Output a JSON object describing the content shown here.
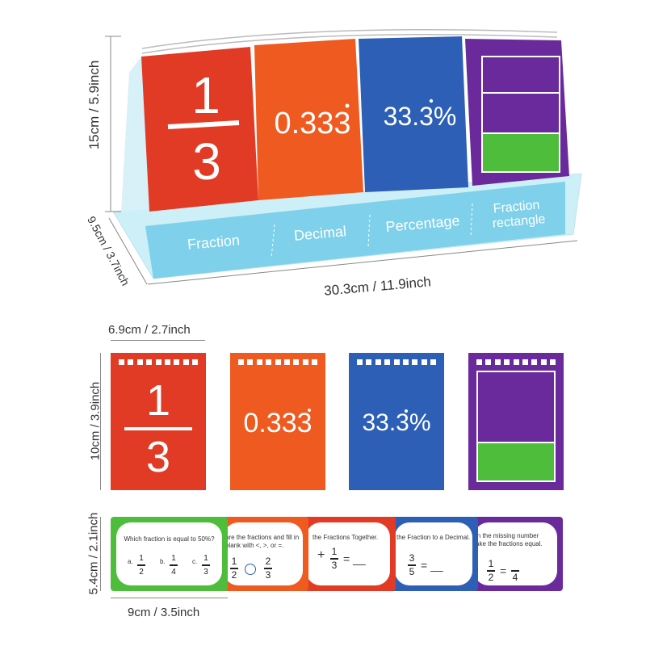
{
  "stand": {
    "cards": {
      "fraction_numerator": "1",
      "fraction_denominator": "3",
      "decimal": "0.333",
      "decimal_dot": "̇",
      "percentage": "33.3%"
    },
    "labels": {
      "fraction": "Fraction",
      "decimal": "Decimal",
      "percentage": "Percentage",
      "fraction_rectangle_line1": "Fraction",
      "fraction_rectangle_line2": "rectangle"
    },
    "dimensions": {
      "height": "15cm / 5.9inch",
      "depth": "9.5cm / 3.7inch",
      "width": "30.3cm / 11.9inch"
    }
  },
  "flat_cards": {
    "width_label": "6.9cm / 2.7inch",
    "height_label": "10cm / 3.9inch",
    "fraction_numerator": "1",
    "fraction_denominator": "3",
    "decimal": "0.333",
    "percentage": "33.3%"
  },
  "task_cards": {
    "height_label": "5.4cm / 2.1inch",
    "width_label": "9cm / 3.5inch",
    "card1": {
      "question": "Which fraction is equal to 50%?",
      "opt_a": "a.",
      "opt_b": "b.",
      "opt_c": "c.",
      "a_num": "1",
      "a_den": "2",
      "b_num": "1",
      "b_den": "4",
      "c_num": "1",
      "c_den": "3"
    },
    "card2": {
      "line1": "are the fractions and fill in",
      "line2": "blank with <, >, or =.",
      "n1": "1",
      "d1": "2",
      "n2": "2",
      "d2": "3"
    },
    "card3": {
      "line1": "the Fractions Together.",
      "expr": "+",
      "n1": "1",
      "d1": "3",
      "eq": "= __"
    },
    "card4": {
      "line1": "the Fraction to a Decimal.",
      "n1": "3",
      "d1": "5",
      "eq": "= __"
    },
    "card5": {
      "line1": "in the missing number",
      "line2": "ake the fractions equal.",
      "n1": "1",
      "d1": "2",
      "eq": "=",
      "d2": "4"
    }
  },
  "colors": {
    "red": "#e23b25",
    "orange": "#ee5a1f",
    "blue": "#2c5fb5",
    "purple": "#6a2a9c",
    "green": "#4ebd3b",
    "cyan": "#7fd0ea"
  }
}
